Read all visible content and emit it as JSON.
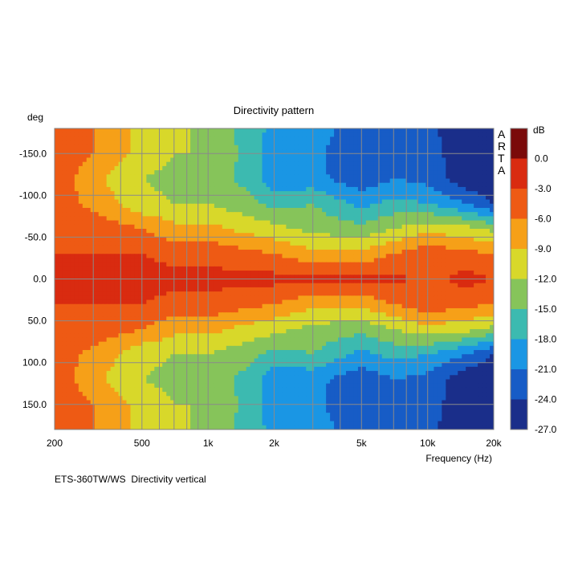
{
  "chart_data": {
    "type": "heatmap",
    "title": "Directivity pattern",
    "ylabel": "deg",
    "xlabel": "Frequency (Hz)",
    "x_scale": "log",
    "xlim": [
      200,
      20000
    ],
    "ylim": [
      -180,
      180
    ],
    "y_inverted": true,
    "x_ticks": [
      {
        "value": 200,
        "label": "200"
      },
      {
        "value": 500,
        "label": "500"
      },
      {
        "value": 1000,
        "label": "1k"
      },
      {
        "value": 2000,
        "label": "2k"
      },
      {
        "value": 5000,
        "label": "5k"
      },
      {
        "value": 10000,
        "label": "10k"
      },
      {
        "value": 20000,
        "label": "20k"
      }
    ],
    "y_ticks": [
      {
        "value": -150,
        "label": "-150.0"
      },
      {
        "value": -100,
        "label": "-100.0"
      },
      {
        "value": -50,
        "label": "-50.0"
      },
      {
        "value": 0,
        "label": "0.0"
      },
      {
        "value": 50,
        "label": "50.0"
      },
      {
        "value": 100,
        "label": "100.0"
      },
      {
        "value": 150,
        "label": "150.0"
      }
    ],
    "grid": true,
    "colorbar": {
      "unit": "dB",
      "levels": [
        "0.0",
        "-3.0",
        "-6.0",
        "-9.0",
        "-12.0",
        "-15.0",
        "-18.0",
        "-21.0",
        "-24.0",
        "-27.0"
      ],
      "colors": [
        "#7a0a0a",
        "#d92b10",
        "#ee5a14",
        "#f6a018",
        "#d8d82a",
        "#86c45a",
        "#3cbab0",
        "#1a96e4",
        "#175cc6",
        "#1a2e8a"
      ]
    },
    "z_unit": "dB",
    "approx_level_dB": {
      "frequency_hz": [
        200,
        300,
        500,
        700,
        1000,
        1500,
        2000,
        3000,
        5000,
        7000,
        10000,
        15000,
        20000
      ],
      "angle_deg": [
        0,
        30,
        60,
        90,
        120,
        150,
        180
      ],
      "values": [
        [
          0,
          0,
          -2,
          -2,
          -2,
          -2,
          -2,
          -2,
          -2,
          -2,
          -4,
          -2,
          -3
        ],
        [
          -3,
          -3,
          -3,
          -4,
          -4,
          -5,
          -6,
          -8,
          -8,
          -6,
          -4,
          -5,
          -6
        ],
        [
          -3,
          -4,
          -6,
          -8,
          -8,
          -10,
          -11,
          -13,
          -14,
          -12,
          -10,
          -11,
          -13
        ],
        [
          -4,
          -7,
          -11,
          -12,
          -12,
          -14,
          -16,
          -15,
          -19,
          -17,
          -18,
          -21,
          -24
        ],
        [
          -4,
          -8,
          -12,
          -13,
          -13,
          -16,
          -20,
          -20,
          -23,
          -21,
          -22,
          -26,
          -27
        ],
        [
          -4,
          -6,
          -10,
          -12,
          -12,
          -16,
          -20,
          -20,
          -24,
          -22,
          -22,
          -27,
          -27
        ],
        [
          -4,
          -6,
          -10,
          -11,
          -13,
          -16,
          -19,
          -20,
          -22,
          -22,
          -23,
          -27,
          -27
        ]
      ]
    }
  },
  "watermark": "ARTA",
  "footer": "ETS-360TW/WS  Directivity vertical"
}
